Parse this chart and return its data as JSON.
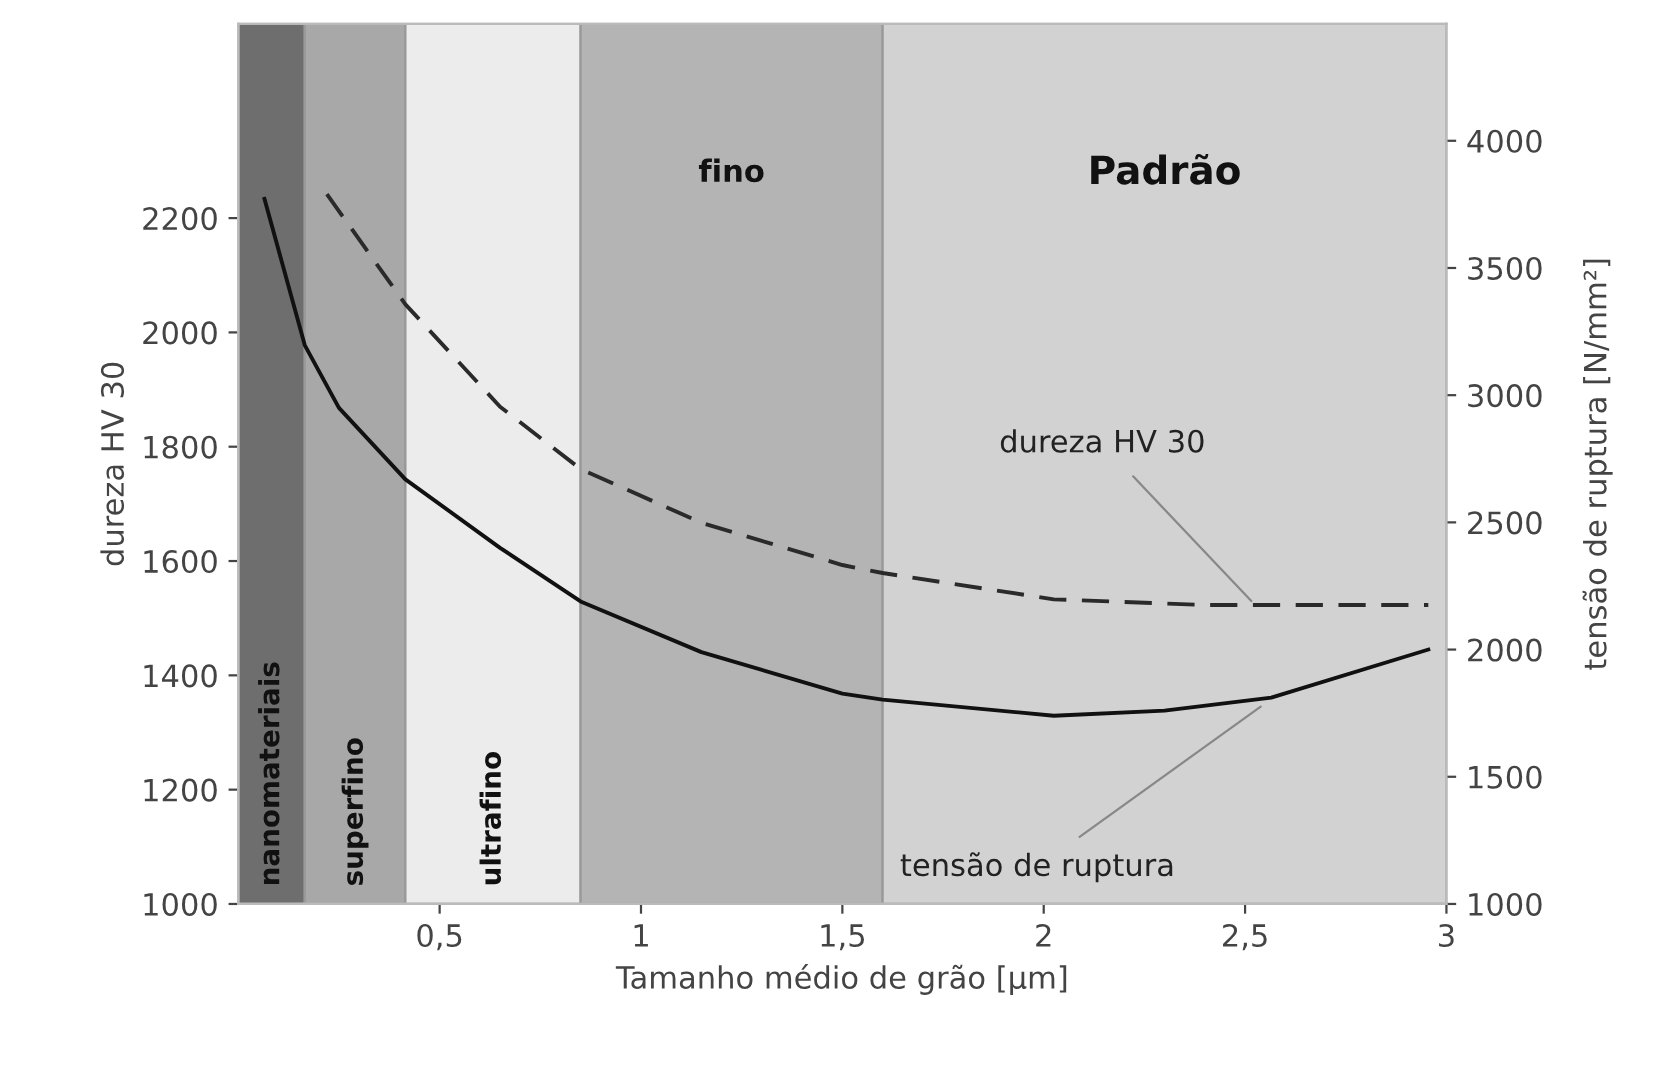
{
  "chart_data": {
    "type": "line",
    "xlabel": "Tamanho médio de grão [µm]",
    "ylabel": "dureza HV 30",
    "y2label": "tensão de ruptura [N/mm²]",
    "xlim": [
      0,
      3
    ],
    "xticks": [
      {
        "value": 0.5,
        "label": "0,5"
      },
      1,
      {
        "value": 1.5,
        "label": "1,5"
      },
      2,
      {
        "value": 2.5,
        "label": "2,5"
      },
      3
    ],
    "ylim": [
      1000,
      2540
    ],
    "yticks": [
      1000,
      1200,
      1400,
      1600,
      1800,
      2000,
      2200
    ],
    "y2lim": [
      1000,
      4460
    ],
    "y2ticks": [
      1000,
      1500,
      2000,
      2500,
      3000,
      3500,
      4000
    ],
    "grid": false,
    "marker": "none",
    "series": [
      {
        "color": "#2a2a2a",
        "line_style": "dashed",
        "x": [
          0.22,
          0.415,
          0.65,
          0.85,
          1.15,
          1.5,
          1.6,
          2.025,
          2.4,
          2.955
        ],
        "values": [
          2242,
          2049,
          1870,
          1761,
          1667,
          1593,
          1579,
          1533,
          1523,
          1523
        ]
      },
      {
        "color": "#111111",
        "line_style": "solid",
        "axis": "y2",
        "x": [
          0.065,
          0.165,
          0.25,
          0.415,
          0.65,
          0.85,
          1.15,
          1.5,
          1.6,
          2.025,
          2.3,
          2.565,
          2.955
        ],
        "values": [
          3772,
          3197,
          2950,
          2669,
          2400,
          2189,
          1990,
          1827,
          1803,
          1740,
          1760,
          1811,
          2000
        ]
      }
    ],
    "bands": [
      {
        "axis": "x",
        "from": 0,
        "to": 0.165,
        "label": "nanomateriais",
        "color": "#6e6e6e"
      },
      {
        "axis": "x",
        "from": 0.165,
        "to": 0.415,
        "label": "superfino",
        "color": "#a8a8a8"
      },
      {
        "axis": "x",
        "from": 0.415,
        "to": 0.85,
        "label": "ultrafino",
        "color": "#ececec"
      },
      {
        "axis": "x",
        "from": 0.85,
        "to": 1.6,
        "label": "fino",
        "color": "#b4b4b4"
      },
      {
        "axis": "x",
        "from": 1.6,
        "to": 3,
        "label": "Padrão",
        "color": "#d2d2d2"
      }
    ],
    "annotations": [
      {
        "text": "dureza HV 30",
        "x": 2.525,
        "y": 1523
      },
      {
        "text": "tensão de ruptura",
        "x": 2.55,
        "y": 1351
      }
    ]
  }
}
